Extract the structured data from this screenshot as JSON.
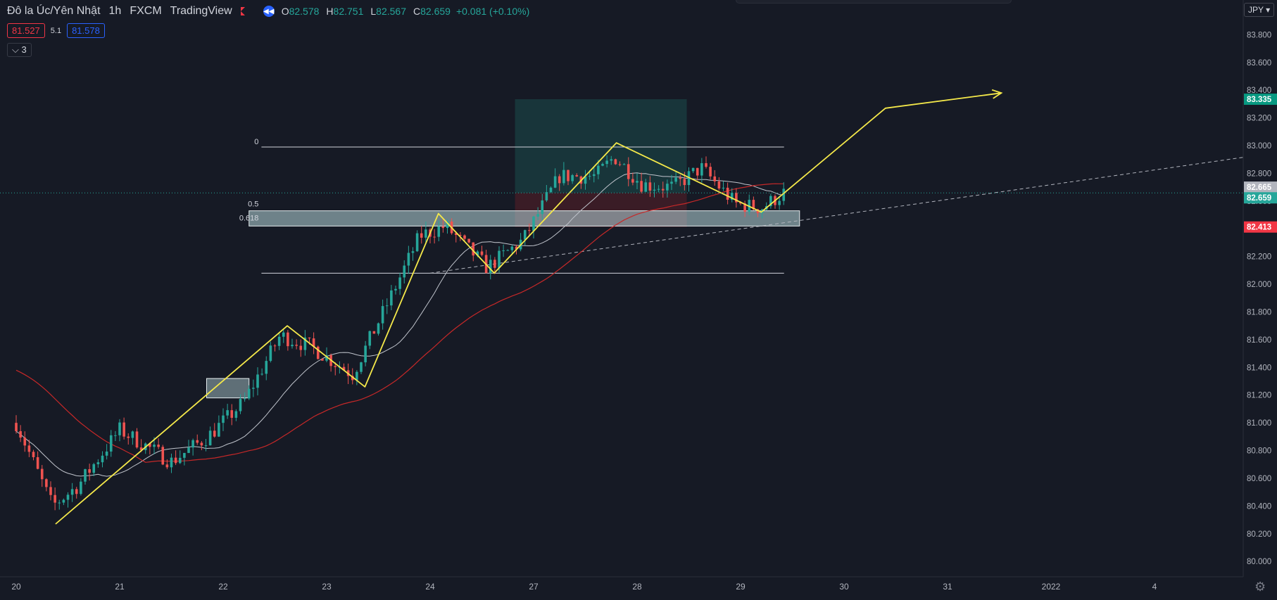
{
  "header": {
    "symbol": "Đô la Úc/Yên Nhật",
    "interval": "1h",
    "exchange": "FXCM",
    "source": "TradingView",
    "ohlc": {
      "o_label": "O",
      "o": "82.578",
      "h_label": "H",
      "h": "82.751",
      "l_label": "L",
      "l": "82.567",
      "c_label": "C",
      "c": "82.659",
      "change": "+0.081 (+0.10%)"
    },
    "bid": "81.527",
    "spread": "5.1",
    "ask": "81.578",
    "indicators_collapsed": "3",
    "currency": "JPY",
    "icons": [
      "flag-icon",
      "back-arrow-icon",
      "chevron-down-icon",
      "gear-icon"
    ]
  },
  "colors": {
    "background": "#161a25",
    "up": "#26a69a",
    "down": "#ef5350",
    "pattern": "#f5e94a",
    "ma_fast": "#c0c4cc",
    "ma_slow": "#c62828",
    "current_price": "#26a69a",
    "stop_price": "#f23645"
  },
  "chart_data": {
    "type": "candlestick",
    "y_axis": {
      "ticks": [
        "83.800",
        "83.600",
        "83.400",
        "83.200",
        "83.000",
        "82.800",
        "82.600",
        "82.400",
        "82.200",
        "82.000",
        "81.800",
        "81.600",
        "81.400",
        "81.200",
        "81.000",
        "80.800",
        "80.600",
        "80.400",
        "80.200",
        "80.000"
      ],
      "range": [
        79.93,
        84.0
      ]
    },
    "x_axis": {
      "ticks": [
        "20",
        "21",
        "22",
        "23",
        "24",
        "27",
        "28",
        "29",
        "30",
        "31",
        "2022",
        "4"
      ]
    },
    "price_tags": [
      {
        "value": 83.335,
        "label": "83.335",
        "color": "#089981"
      },
      {
        "value": 82.665,
        "label": "82.665",
        "color": "#b2b5be"
      },
      {
        "value": 82.659,
        "label": "82.659",
        "color": "#26a69a"
      },
      {
        "value": 82.413,
        "label": "82.413",
        "color": "#f23645"
      }
    ],
    "current_price": 82.659,
    "fib_levels": [
      {
        "label": "0",
        "value": 82.99
      },
      {
        "label": "0.5",
        "value": 82.54
      },
      {
        "label": "0.618",
        "value": 82.44
      }
    ],
    "lower_line": 82.08,
    "zone_upper": [
      82.42,
      82.53
    ],
    "zone_lower": [
      81.18,
      81.32
    ],
    "position": {
      "entry": 82.659,
      "target": 83.335,
      "stop": 82.413
    },
    "pattern_path": [
      [
        0.38,
        80.27
      ],
      [
        2.62,
        81.7
      ],
      [
        3.37,
        81.26
      ],
      [
        4.08,
        82.51
      ],
      [
        4.62,
        82.08
      ],
      [
        5.8,
        83.02
      ],
      [
        7.2,
        82.52
      ],
      [
        8.4,
        83.27
      ]
    ],
    "pattern_arrow": [
      9.52,
      83.38
    ],
    "trend_line": [
      [
        4.0,
        82.08
      ],
      [
        12.65,
        83.0
      ]
    ],
    "series_close_knots": [
      [
        0.0,
        81.0
      ],
      [
        0.35,
        80.4
      ],
      [
        0.6,
        80.55
      ],
      [
        1.0,
        80.95
      ],
      [
        1.5,
        80.72
      ],
      [
        1.85,
        80.9
      ],
      [
        2.2,
        81.15
      ],
      [
        2.55,
        81.63
      ],
      [
        2.85,
        81.55
      ],
      [
        3.25,
        81.35
      ],
      [
        3.6,
        81.88
      ],
      [
        3.9,
        82.35
      ],
      [
        4.15,
        82.42
      ],
      [
        4.55,
        82.12
      ],
      [
        4.9,
        82.32
      ],
      [
        5.25,
        82.78
      ],
      [
        5.6,
        82.78
      ],
      [
        5.78,
        82.92
      ],
      [
        6.05,
        82.72
      ],
      [
        6.35,
        82.7
      ],
      [
        6.62,
        82.84
      ],
      [
        6.95,
        82.58
      ],
      [
        7.2,
        82.55
      ],
      [
        7.42,
        82.66
      ]
    ]
  }
}
